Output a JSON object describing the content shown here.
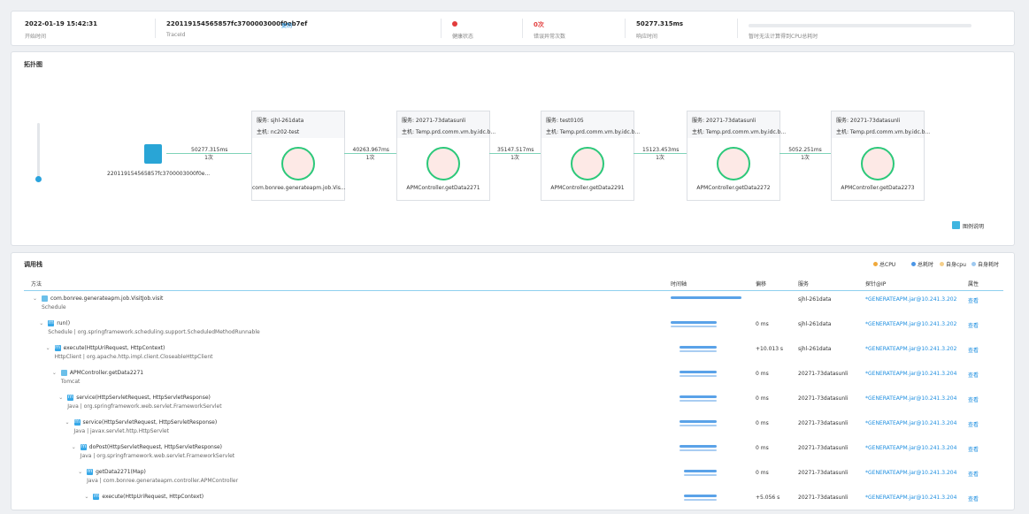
{
  "header": {
    "items": [
      {
        "value": "2022-01-19 15:42:31",
        "label": "开始时间"
      },
      {
        "value": "220119154565857fc3700003000f0eb7ef",
        "action": "复制",
        "label": "TraceId"
      },
      {
        "label": "健康状态"
      },
      {
        "value": "0次",
        "label": "错误异常次数"
      },
      {
        "value": "50277.315ms",
        "label": "响应时间"
      },
      {
        "label": "暂时无法计算得到CPU总耗时"
      }
    ]
  },
  "topology": {
    "title": "拓扑图",
    "root": "220119154565857fc3700003000f0e...",
    "legend_button": "图例说明",
    "nodes": [
      {
        "service": "服务: sjhl-261data",
        "host": "主机: nc202-test",
        "label": "com.bonree.generateapm.job.Vis...",
        "edge_time": "50277.315ms",
        "edge_count": "1次"
      },
      {
        "service": "服务: 20271-73datasunli",
        "host": "主机: Temp.prd.comm.vm.by.idc.b...",
        "label": "APMController.getData2271",
        "edge_time": "40263.967ms",
        "edge_count": "1次"
      },
      {
        "service": "服务: test0105",
        "host": "主机: Temp.prd.comm.vm.by.idc.b...",
        "label": "APMController.getData2291",
        "edge_time": "35147.517ms",
        "edge_count": "1次"
      },
      {
        "service": "服务: 20271-73datasunli",
        "host": "主机: Temp.prd.comm.vm.by.idc.b...",
        "label": "APMController.getData2272",
        "edge_time": "15123.453ms",
        "edge_count": "1次"
      },
      {
        "service": "服务: 20271-73datasunli",
        "host": "主机: Temp.prd.comm.vm.by.idc.b...",
        "label": "APMController.getData2273",
        "edge_time": "5052.251ms",
        "edge_count": "1次"
      }
    ]
  },
  "call_stack": {
    "title": "调用栈",
    "legend": [
      "总CPU",
      "总耗时",
      "自身cpu",
      "自身耗时"
    ],
    "columns": [
      "方法",
      "时间轴",
      "偏移",
      "服务",
      "探针@IP",
      "属性"
    ],
    "rows": [
      {
        "method": "com.bonree.generateapm.job.VisitJob.visit",
        "detail": "Schedule",
        "service": "sjhl-261data",
        "probe": "*GENERATEAPM.jar@10.241.3.202",
        "action": "查看"
      },
      {
        "icon": "m",
        "method": "run()",
        "detail": "Schedule | org.springframework.scheduling.support.ScheduledMethodRunnable",
        "offset": "0 ms",
        "service": "sjhl-261data",
        "probe": "*GENERATEAPM.jar@10.241.3.202",
        "action": "查看"
      },
      {
        "icon": "m",
        "method": "execute(HttpUriRequest, HttpContext)",
        "detail": "HttpClient | org.apache.http.impl.client.CloseableHttpClient",
        "offset": "+10.013 s",
        "service": "sjhl-261data",
        "probe": "*GENERATEAPM.jar@10.241.3.202",
        "action": "查看"
      },
      {
        "method": "APMController.getData2271",
        "detail": "Tomcat",
        "offset": "0 ms",
        "service": "20271-73datasunli",
        "probe": "*GENERATEAPM.jar@10.241.3.204",
        "action": "查看"
      },
      {
        "icon": "m",
        "method": "service(HttpServletRequest, HttpServletResponse)",
        "detail": "Java | org.springframework.web.servlet.FrameworkServlet",
        "offset": "0 ms",
        "service": "20271-73datasunli",
        "probe": "*GENERATEAPM.jar@10.241.3.204",
        "action": "查看"
      },
      {
        "icon": "m",
        "method": "service(HttpServletRequest, HttpServletResponse)",
        "detail": "Java | javax.servlet.http.HttpServlet",
        "offset": "0 ms",
        "service": "20271-73datasunli",
        "probe": "*GENERATEAPM.jar@10.241.3.204",
        "action": "查看"
      },
      {
        "icon": "m",
        "method": "doPost(HttpServletRequest, HttpServletResponse)",
        "detail": "Java | org.springframework.web.servlet.FrameworkServlet",
        "offset": "0 ms",
        "service": "20271-73datasunli",
        "probe": "*GENERATEAPM.jar@10.241.3.204",
        "action": "查看"
      },
      {
        "icon": "m",
        "method": "getData2271(Map)",
        "detail": "Java | com.bonree.generateapm.controller.APMController",
        "offset": "0 ms",
        "service": "20271-73datasunli",
        "probe": "*GENERATEAPM.jar@10.241.3.204",
        "action": "查看"
      },
      {
        "icon": "m",
        "method": "execute(HttpUriRequest, HttpContext)",
        "offset": "+5.056 s",
        "service": "20271-73datasunli",
        "probe": "*GENERATEAPM.jar@10.241.3.204",
        "action": "查看"
      }
    ]
  }
}
